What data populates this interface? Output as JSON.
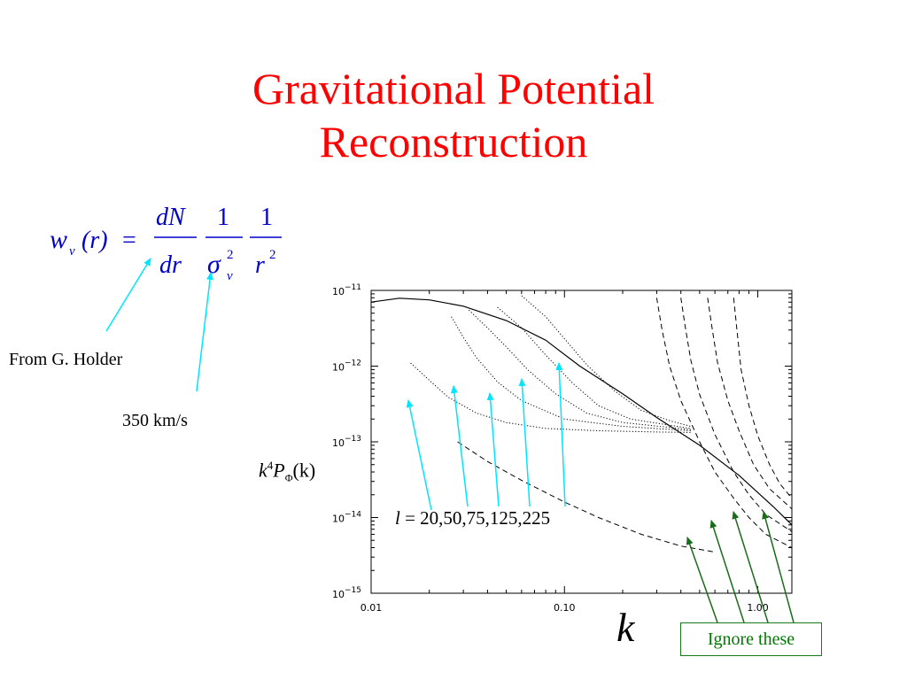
{
  "slide": {
    "title_line1": "Gravitational Potential",
    "title_line2": "Reconstruction",
    "title_color": "#ff0000"
  },
  "formula": {
    "lhs_w": "w",
    "lhs_sub": "v",
    "lhs_arg": "(r)",
    "equals": "=",
    "num1": "dN",
    "den1": "dr",
    "num2": "1",
    "den2_sigma": "σ",
    "den2_sup": "2",
    "den2_sub": "v",
    "num3": "1",
    "den3_r": "r",
    "den3_sup": "2",
    "color": "#0000cc"
  },
  "annotations": {
    "from_holder": "From G. Holder",
    "velocity": "350 km/s",
    "ell_symbol": "l",
    "ell_values": "= 20,50,75,125,225",
    "ignore": "Ignore these",
    "arrow_cyan": "#00e5ff",
    "arrow_green": "#1a6b1a"
  },
  "chart_data": {
    "type": "line",
    "xscale": "log",
    "yscale": "log",
    "xlim": [
      0.01,
      1.5
    ],
    "ylim": [
      1e-15,
      1e-11
    ],
    "xticks": [
      "0.01",
      "0.10",
      "1.00"
    ],
    "yticks": [
      {
        "base": "10",
        "exp": "−11"
      },
      {
        "base": "10",
        "exp": "−12"
      },
      {
        "base": "10",
        "exp": "−13"
      },
      {
        "base": "10",
        "exp": "−14"
      },
      {
        "base": "10",
        "exp": "−15"
      }
    ],
    "ylabel_base": "k",
    "ylabel_sup": "4",
    "ylabel_P": "P",
    "ylabel_sub": "Φ",
    "ylabel_arg": "(k)",
    "xlabel": "k",
    "series": [
      {
        "style": "solid",
        "points": [
          [
            0.01,
            7e-12
          ],
          [
            0.014,
            7.9e-12
          ],
          [
            0.02,
            7.5e-12
          ],
          [
            0.03,
            6.2e-12
          ],
          [
            0.05,
            4e-12
          ],
          [
            0.08,
            2.2e-12
          ],
          [
            0.12,
            1e-12
          ],
          [
            0.2,
            4.3e-13
          ],
          [
            0.3,
            2.1e-13
          ],
          [
            0.5,
            9e-14
          ],
          [
            0.8,
            3.6e-14
          ],
          [
            1.2,
            1.4e-14
          ],
          [
            1.5,
            8e-15
          ]
        ]
      },
      {
        "style": "dotted",
        "points": [
          [
            0.016,
            1.1e-12
          ],
          [
            0.02,
            6.5e-13
          ],
          [
            0.025,
            3.9e-13
          ],
          [
            0.035,
            2.4e-13
          ],
          [
            0.05,
            1.8e-13
          ],
          [
            0.08,
            1.5e-13
          ],
          [
            0.15,
            1.4e-13
          ],
          [
            0.3,
            1.35e-13
          ],
          [
            0.45,
            1.33e-13
          ]
        ]
      },
      {
        "style": "dotted",
        "points": [
          [
            0.026,
            4.5e-12
          ],
          [
            0.03,
            2.4e-12
          ],
          [
            0.035,
            1.3e-12
          ],
          [
            0.045,
            6.2e-13
          ],
          [
            0.06,
            3.5e-13
          ],
          [
            0.1,
            2e-13
          ],
          [
            0.2,
            1.6e-13
          ],
          [
            0.45,
            1.4e-13
          ]
        ]
      },
      {
        "style": "dotted",
        "points": [
          [
            0.032,
            5.5e-12
          ],
          [
            0.04,
            3.2e-12
          ],
          [
            0.05,
            1.8e-12
          ],
          [
            0.065,
            8.8e-13
          ],
          [
            0.09,
            4.3e-13
          ],
          [
            0.13,
            2.4e-13
          ],
          [
            0.2,
            1.8e-13
          ],
          [
            0.45,
            1.45e-13
          ]
        ]
      },
      {
        "style": "dotted",
        "points": [
          [
            0.045,
            6e-12
          ],
          [
            0.06,
            3.2e-12
          ],
          [
            0.08,
            1.4e-12
          ],
          [
            0.11,
            6e-13
          ],
          [
            0.15,
            3e-13
          ],
          [
            0.22,
            2e-13
          ],
          [
            0.45,
            1.5e-13
          ]
        ]
      },
      {
        "style": "dotted",
        "points": [
          [
            0.06,
            8.5e-12
          ],
          [
            0.08,
            4.5e-12
          ],
          [
            0.1,
            2.3e-12
          ],
          [
            0.13,
            1.05e-12
          ],
          [
            0.18,
            4.8e-13
          ],
          [
            0.25,
            2.6e-13
          ],
          [
            0.35,
            1.9e-13
          ],
          [
            0.45,
            1.6e-13
          ]
        ]
      },
      {
        "style": "dashed",
        "points": [
          [
            0.3,
            8e-12
          ],
          [
            0.32,
            3e-12
          ],
          [
            0.35,
            1e-12
          ],
          [
            0.4,
            3.5e-13
          ],
          [
            0.5,
            1e-13
          ],
          [
            0.6,
            4e-14
          ],
          [
            0.75,
            1.8e-14
          ],
          [
            0.9,
            1e-14
          ],
          [
            1.1,
            6e-15
          ],
          [
            1.5,
            4e-15
          ]
        ]
      },
      {
        "style": "dashed",
        "points": [
          [
            0.4,
            8e-12
          ],
          [
            0.42,
            3.5e-12
          ],
          [
            0.45,
            1.2e-12
          ],
          [
            0.5,
            4.2e-13
          ],
          [
            0.6,
            1.25e-13
          ],
          [
            0.75,
            4e-14
          ],
          [
            0.9,
            2e-14
          ],
          [
            1.1,
            1.1e-14
          ],
          [
            1.5,
            6.5e-15
          ]
        ]
      },
      {
        "style": "dashed",
        "points": [
          [
            0.55,
            8e-12
          ],
          [
            0.58,
            3.2e-12
          ],
          [
            0.62,
            1.1e-12
          ],
          [
            0.7,
            3.5e-13
          ],
          [
            0.8,
            1.4e-13
          ],
          [
            0.95,
            5e-14
          ],
          [
            1.15,
            2.4e-14
          ],
          [
            1.5,
            1.3e-14
          ]
        ]
      },
      {
        "style": "dashed",
        "points": [
          [
            0.75,
            8e-12
          ],
          [
            0.78,
            3e-12
          ],
          [
            0.82,
            9e-13
          ],
          [
            0.9,
            3e-13
          ],
          [
            1.0,
            1.2e-13
          ],
          [
            1.15,
            5e-14
          ],
          [
            1.3,
            2.8e-14
          ],
          [
            1.5,
            1.8e-14
          ]
        ]
      },
      {
        "style": "dashed",
        "points": [
          [
            0.028,
            1e-13
          ],
          [
            0.04,
            5.5e-14
          ],
          [
            0.06,
            3.1e-14
          ],
          [
            0.1,
            1.6e-14
          ],
          [
            0.15,
            1e-14
          ],
          [
            0.25,
            6e-15
          ],
          [
            0.4,
            4.2e-15
          ],
          [
            0.6,
            3.5e-15
          ]
        ]
      }
    ]
  }
}
